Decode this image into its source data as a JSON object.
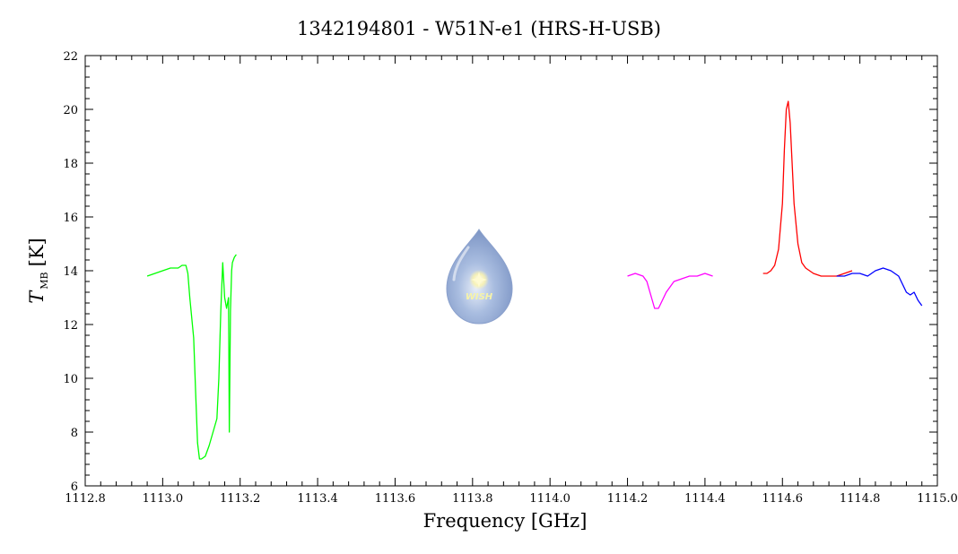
{
  "chart_data": {
    "type": "line",
    "title": "1342194801 - W51N-e1 (HRS-H-USB)",
    "xlabel": "Frequency [GHz]",
    "ylabel": {
      "main": "T",
      "subscript": "MB",
      "unit": "[K]"
    },
    "xlim": [
      1112.8,
      1115.0
    ],
    "ylim": [
      6,
      22
    ],
    "xticks": [
      "1112.8",
      "1113.0",
      "1113.2",
      "1113.4",
      "1113.6",
      "1113.8",
      "1114.0",
      "1114.2",
      "1114.4",
      "1114.6",
      "1114.8",
      "1115.0"
    ],
    "yticks": [
      "6",
      "8",
      "10",
      "12",
      "14",
      "16",
      "18",
      "20",
      "22"
    ],
    "grid": false,
    "logo_text": "WISH",
    "series": [
      {
        "color": "#00ff00",
        "x": [
          1112.96,
          1112.98,
          1113.0,
          1113.02,
          1113.04,
          1113.05,
          1113.06,
          1113.065,
          1113.07,
          1113.08,
          1113.085,
          1113.09,
          1113.095,
          1113.1,
          1113.11,
          1113.12,
          1113.13,
          1113.14,
          1113.145,
          1113.15,
          1113.155,
          1113.16,
          1113.165,
          1113.17,
          1113.172,
          1113.175,
          1113.178,
          1113.18,
          1113.185,
          1113.19
        ],
        "y": [
          13.8,
          13.9,
          14.0,
          14.1,
          14.1,
          14.2,
          14.2,
          13.9,
          13.0,
          11.5,
          9.5,
          7.6,
          7.0,
          7.0,
          7.1,
          7.5,
          8.0,
          8.5,
          10.0,
          12.5,
          14.3,
          13.0,
          12.6,
          13.0,
          8.0,
          12.5,
          14.0,
          14.3,
          14.5,
          14.6
        ]
      },
      {
        "color": "#ff00ff",
        "x": [
          1114.2,
          1114.22,
          1114.24,
          1114.25,
          1114.26,
          1114.27,
          1114.28,
          1114.29,
          1114.3,
          1114.32,
          1114.34,
          1114.36,
          1114.38,
          1114.4,
          1114.42
        ],
        "y": [
          13.8,
          13.9,
          13.8,
          13.6,
          13.1,
          12.6,
          12.6,
          12.9,
          13.2,
          13.6,
          13.7,
          13.8,
          13.8,
          13.9,
          13.8
        ]
      },
      {
        "color": "#ff0000",
        "x": [
          1114.55,
          1114.56,
          1114.57,
          1114.58,
          1114.59,
          1114.6,
          1114.605,
          1114.61,
          1114.615,
          1114.62,
          1114.625,
          1114.63,
          1114.64,
          1114.65,
          1114.66,
          1114.68,
          1114.7,
          1114.72,
          1114.74,
          1114.76,
          1114.78
        ],
        "y": [
          13.9,
          13.9,
          14.0,
          14.2,
          14.8,
          16.5,
          18.5,
          20.0,
          20.3,
          19.5,
          18.0,
          16.5,
          15.0,
          14.3,
          14.1,
          13.9,
          13.8,
          13.8,
          13.8,
          13.9,
          14.0
        ]
      },
      {
        "color": "#0000ff",
        "x": [
          1114.74,
          1114.76,
          1114.78,
          1114.8,
          1114.82,
          1114.84,
          1114.86,
          1114.88,
          1114.9,
          1114.91,
          1114.92,
          1114.93,
          1114.94,
          1114.95,
          1114.96
        ],
        "y": [
          13.8,
          13.8,
          13.9,
          13.9,
          13.8,
          14.0,
          14.1,
          14.0,
          13.8,
          13.5,
          13.2,
          13.1,
          13.2,
          12.9,
          12.7
        ]
      }
    ]
  }
}
